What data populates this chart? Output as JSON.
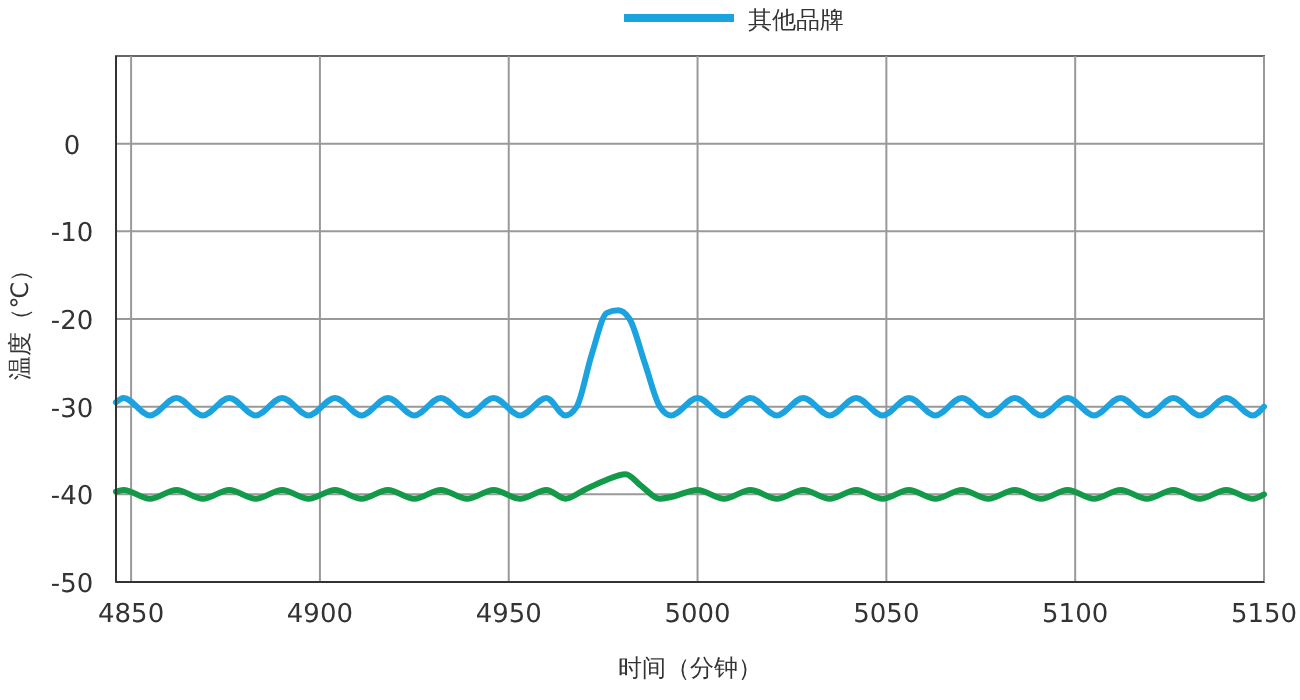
{
  "chart_data": {
    "type": "line",
    "xlabel": "时间（分钟）",
    "ylabel": "温度（℃）",
    "xlim": [
      4846,
      5150
    ],
    "ylim": [
      -50,
      10
    ],
    "xticks": [
      4850,
      4900,
      4950,
      5000,
      5050,
      5100,
      5150
    ],
    "yticks": [
      -50,
      -40,
      -30,
      -20,
      -10,
      0
    ],
    "grid": true,
    "legend": "top right",
    "line_style": "solid",
    "x": [
      4846,
      4848,
      4855,
      4862,
      4869,
      4876,
      4883,
      4890,
      4897,
      4904,
      4911,
      4918,
      4925,
      4932,
      4939,
      4946,
      4953,
      4960,
      4965,
      4968,
      4972,
      4976,
      4979,
      4982,
      4986,
      4990,
      4993,
      5000,
      5007,
      5014,
      5021,
      5028,
      5035,
      5042,
      5049,
      5056,
      5063,
      5070,
      5077,
      5084,
      5091,
      5098,
      5105,
      5112,
      5119,
      5126,
      5133,
      5140,
      5147,
      5150
    ],
    "series": [
      {
        "name": "其他品牌",
        "color": "#1ba3e0",
        "values": [
          -29.5,
          -29,
          -31,
          -29,
          -31,
          -29,
          -31,
          -29,
          -31,
          -29,
          -31,
          -29,
          -31,
          -29,
          -31,
          -29,
          -31,
          -29,
          -31,
          -30,
          -24,
          -19.3,
          -19,
          -20,
          -25,
          -30,
          -31,
          -29,
          -31,
          -29,
          -31,
          -29,
          -31,
          -29,
          -31,
          -29,
          -31,
          -29,
          -31,
          -29,
          -31,
          -29,
          -31,
          -29,
          -31,
          -29,
          -31,
          -29,
          -31,
          -30
        ]
      },
      {
        "color": "#129a49",
        "x": [
          4846,
          4848,
          4855,
          4862,
          4869,
          4876,
          4883,
          4890,
          4897,
          4904,
          4911,
          4918,
          4925,
          4932,
          4939,
          4946,
          4953,
          4960,
          4965,
          4970,
          4975,
          4981,
          4985,
          4990,
          4993,
          5000,
          5007,
          5014,
          5021,
          5028,
          5035,
          5042,
          5049,
          5056,
          5063,
          5070,
          5077,
          5084,
          5091,
          5098,
          5105,
          5112,
          5119,
          5126,
          5133,
          5140,
          5147,
          5150
        ],
        "values": [
          -39.7,
          -39.5,
          -40.5,
          -39.5,
          -40.5,
          -39.5,
          -40.5,
          -39.5,
          -40.5,
          -39.5,
          -40.5,
          -39.5,
          -40.5,
          -39.5,
          -40.5,
          -39.5,
          -40.5,
          -39.5,
          -40.5,
          -39.5,
          -38.5,
          -37.7,
          -39,
          -40.5,
          -40.3,
          -39.5,
          -40.5,
          -39.5,
          -40.5,
          -39.5,
          -40.5,
          -39.5,
          -40.5,
          -39.5,
          -40.5,
          -39.5,
          -40.5,
          -39.5,
          -40.5,
          -39.5,
          -40.5,
          -39.5,
          -40.5,
          -39.5,
          -40.5,
          -39.5,
          -40.5,
          -40
        ]
      }
    ]
  }
}
